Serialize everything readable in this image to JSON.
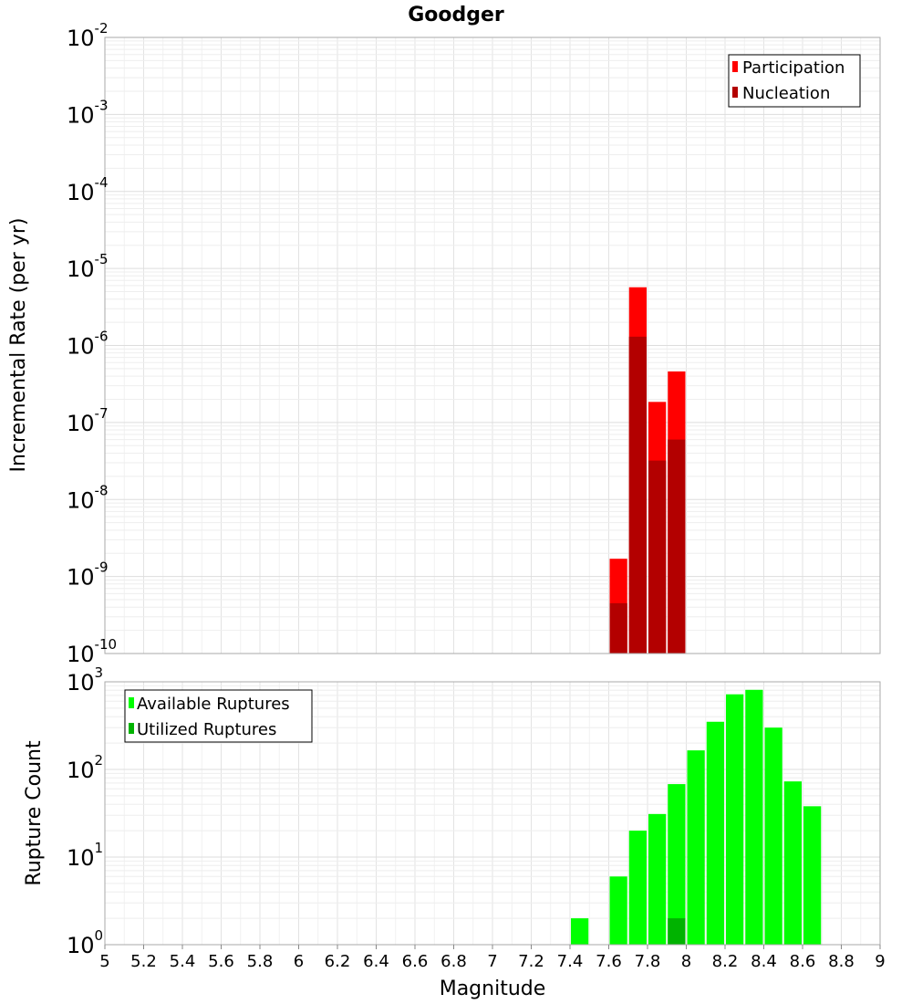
{
  "chart_data": [
    {
      "type": "bar",
      "title": "Goodger",
      "xlabel": "",
      "ylabel": "Incremental Rate (per yr)",
      "yscale": "log",
      "ylim_exp": [
        -10,
        -2
      ],
      "xlim": [
        5,
        9
      ],
      "bar_width": 0.1,
      "legend_position": "top-right",
      "grid": true,
      "series": [
        {
          "name": "Participation",
          "color": "#ff0000",
          "x": [
            7.65,
            7.75,
            7.85,
            7.95
          ],
          "values": [
            1.7e-09,
            5.7e-06,
            1.85e-07,
            4.6e-07
          ]
        },
        {
          "name": "Nucleation",
          "color": "#b30000",
          "x": [
            7.65,
            7.75,
            7.85,
            7.95
          ],
          "values": [
            4.5e-10,
            1.3e-06,
            3.2e-08,
            6e-08
          ]
        }
      ]
    },
    {
      "type": "bar",
      "title": "",
      "xlabel": "Magnitude",
      "ylabel": "Rupture Count",
      "yscale": "log",
      "ylim_exp": [
        0,
        3
      ],
      "xlim": [
        5,
        9
      ],
      "bar_width": 0.1,
      "legend_position": "top-left",
      "grid": true,
      "series": [
        {
          "name": "Available Ruptures",
          "color": "#00ff00",
          "x": [
            7.15,
            7.45,
            7.55,
            7.65,
            7.75,
            7.85,
            7.95,
            8.05,
            8.15,
            8.25,
            8.35,
            8.45,
            8.55,
            8.65
          ],
          "values": [
            1,
            2,
            1,
            6,
            20,
            31,
            68,
            165,
            350,
            720,
            810,
            300,
            73,
            38
          ]
        },
        {
          "name": "Utilized Ruptures",
          "color": "#00b300",
          "x": [
            7.65,
            7.75,
            7.85,
            7.95
          ],
          "values": [
            1,
            1,
            1,
            2
          ]
        }
      ]
    }
  ],
  "x_ticks": [
    "5",
    "5.2",
    "5.4",
    "5.6",
    "5.8",
    "6",
    "6.2",
    "6.4",
    "6.6",
    "6.8",
    "7",
    "7.2",
    "7.4",
    "7.6",
    "7.8",
    "8",
    "8.2",
    "8.4",
    "8.6",
    "8.8",
    "9"
  ]
}
